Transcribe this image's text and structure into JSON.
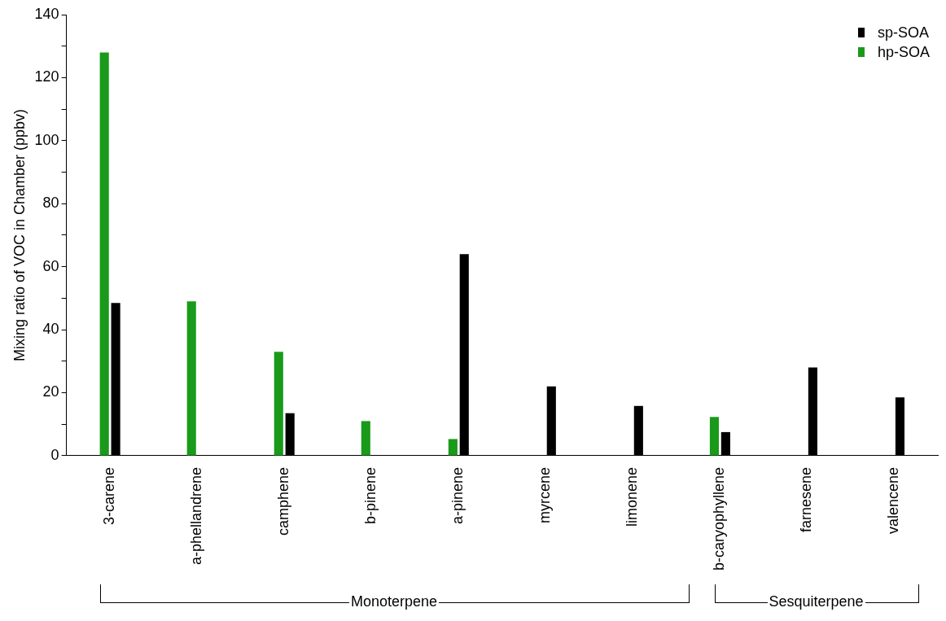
{
  "chart_data": {
    "type": "bar",
    "ylabel": "Mixing ratio of VOC in Chamber (ppbv)",
    "categories": [
      "3-carene",
      "a-phellandrene",
      "camphene",
      "b-pinene",
      "a-pinene",
      "myrcene",
      "limonene",
      "b-caryophyllene",
      "farnesene",
      "valencene"
    ],
    "series": [
      {
        "name": "hp-SOA",
        "color": "#1a9a1a",
        "values": [
          128,
          49,
          33,
          11,
          5.3,
          0,
          0,
          12.3,
          0,
          0
        ]
      },
      {
        "name": "sp-SOA",
        "color": "#000000",
        "values": [
          48.5,
          0,
          13.5,
          0,
          64,
          22,
          15.8,
          7.5,
          28,
          18.5
        ]
      }
    ],
    "ylim": [
      0,
      140
    ],
    "yticks": [
      0,
      {
        "value": 10,
        "label": null
      },
      20,
      {
        "value": 30,
        "label": null
      },
      40,
      {
        "value": 50,
        "label": null
      },
      60,
      {
        "value": 70,
        "label": null
      },
      80,
      {
        "value": 90,
        "label": null
      },
      100,
      {
        "value": 110,
        "label": null
      },
      120,
      {
        "value": 130,
        "label": null
      },
      140
    ],
    "grid": false,
    "legend": "top right",
    "annotations": [
      "Monoterpene",
      "Sesquiterpene"
    ]
  }
}
